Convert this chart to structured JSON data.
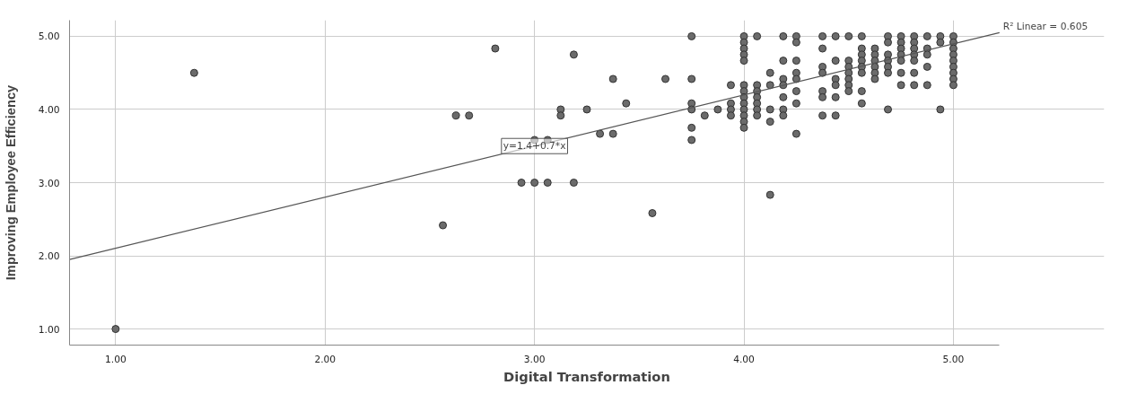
{
  "chart_data": {
    "type": "scatter",
    "xlabel": "Digital Transformation",
    "ylabel": "Improving Employee Efficiency",
    "xlim": [
      0.78,
      5.22
    ],
    "ylim": [
      0.78,
      5.22
    ],
    "xticks": [
      {
        "value": 1,
        "label": "1.00"
      },
      {
        "value": 2,
        "label": "2.00"
      },
      {
        "value": 3,
        "label": "3.00"
      },
      {
        "value": 4,
        "label": "4.00"
      },
      {
        "value": 5,
        "label": "5.00"
      }
    ],
    "yticks": [
      {
        "value": 1,
        "label": "1.00"
      },
      {
        "value": 2,
        "label": "2.00"
      },
      {
        "value": 3,
        "label": "3.00"
      },
      {
        "value": 4,
        "label": "4.00"
      },
      {
        "value": 5,
        "label": "5.00"
      }
    ],
    "grid": true,
    "marker": "circle",
    "series": [
      {
        "color": "#6b6b6b",
        "x": [
          4,
          4.0625,
          4.1875,
          4.25,
          4.375,
          4.4375,
          4.5,
          4.5625,
          4.6875,
          4.75,
          4.8125,
          4.875,
          4.9375,
          5,
          4,
          4.25,
          4.6875,
          4.75,
          4.8125,
          4.9375,
          5,
          4,
          4.375,
          4.5625,
          4.625,
          4.75,
          4.8125,
          4.875,
          5,
          4,
          4.5625,
          4.625,
          4.6875,
          4.75,
          4.8125,
          4.875,
          5,
          4,
          4.1875,
          4.25,
          4.4375,
          4.5,
          4.5625,
          4.625,
          4.6875,
          4.75,
          4.8125,
          5,
          4.375,
          4.5,
          4.5625,
          4.625,
          4.6875,
          4.875,
          5,
          4.125,
          4.25,
          4.375,
          4.5,
          4.5625,
          4.625,
          4.6875,
          4.75,
          4.8125,
          5,
          4.1875,
          4.25,
          4.4375,
          4.5,
          4.625,
          5,
          3.9375,
          4,
          4.0625,
          4.125,
          4.1875,
          4.4375,
          4.5,
          4.75,
          4.8125,
          4.875,
          5,
          4,
          4.0625,
          4.25,
          4.375,
          4.5,
          4.5625,
          4,
          4.0625,
          4.1875,
          4.375,
          4.4375,
          3.9375,
          4,
          4.0625,
          4.25,
          4.5625,
          3.875,
          3.9375,
          4,
          4.0625,
          4.125,
          4.1875,
          4.6875,
          4.9375,
          3.8125,
          3.9375,
          4,
          4.0625,
          4.1875,
          4.375,
          4.4375,
          4,
          4.125,
          4,
          4.25,
          3.75,
          2.8125,
          3.1875,
          3.375,
          3.625,
          3.75,
          3.4375,
          3.75,
          3.125,
          3.125,
          3.25,
          2.625,
          2.6875,
          3.75,
          3.75,
          3.75,
          3.3125,
          3.375,
          3.0,
          3.0625,
          2.9375,
          3.0,
          3.0625,
          3.1875,
          3.5625,
          4.125,
          2.5625,
          1.375,
          1
        ],
        "values": [
          5,
          5,
          5,
          5,
          5,
          5,
          5,
          5,
          5,
          5,
          5,
          5,
          5,
          5,
          4.917,
          4.917,
          4.917,
          4.917,
          4.917,
          4.917,
          4.917,
          4.833,
          4.833,
          4.833,
          4.833,
          4.833,
          4.833,
          4.833,
          4.833,
          4.75,
          4.75,
          4.75,
          4.75,
          4.75,
          4.75,
          4.75,
          4.75,
          4.667,
          4.667,
          4.667,
          4.667,
          4.667,
          4.667,
          4.667,
          4.667,
          4.667,
          4.667,
          4.667,
          4.583,
          4.583,
          4.583,
          4.583,
          4.583,
          4.583,
          4.583,
          4.5,
          4.5,
          4.5,
          4.5,
          4.5,
          4.5,
          4.5,
          4.5,
          4.5,
          4.5,
          4.417,
          4.417,
          4.417,
          4.417,
          4.417,
          4.417,
          4.333,
          4.333,
          4.333,
          4.333,
          4.333,
          4.333,
          4.333,
          4.333,
          4.333,
          4.333,
          4.333,
          4.25,
          4.25,
          4.25,
          4.25,
          4.25,
          4.25,
          4.167,
          4.167,
          4.167,
          4.167,
          4.167,
          4.083,
          4.083,
          4.083,
          4.083,
          4.083,
          4,
          4,
          4,
          4,
          4,
          4,
          4,
          4,
          3.917,
          3.917,
          3.917,
          3.917,
          3.917,
          3.917,
          3.917,
          3.833,
          3.833,
          3.75,
          3.667,
          5,
          4.833,
          4.75,
          4.417,
          4.417,
          4.417,
          4.083,
          4.083,
          4,
          3.917,
          4,
          3.917,
          3.917,
          4,
          3.75,
          3.583,
          3.667,
          3.667,
          3.583,
          3.583,
          3,
          3,
          3,
          3,
          2.583,
          2.833,
          2.417,
          4.5,
          1
        ]
      },
      {
        "type": "line",
        "marker": "none",
        "color": "#555555",
        "x": [
          0.78,
          5.22
        ],
        "values": [
          1.95,
          5.05
        ]
      }
    ],
    "annotations": [
      {
        "text": "y=1.4+0.7*x",
        "x": 3.0,
        "y": 3.5
      },
      {
        "text": "R² Linear = 0.605",
        "x": 5.22,
        "y": 5.05
      }
    ]
  }
}
